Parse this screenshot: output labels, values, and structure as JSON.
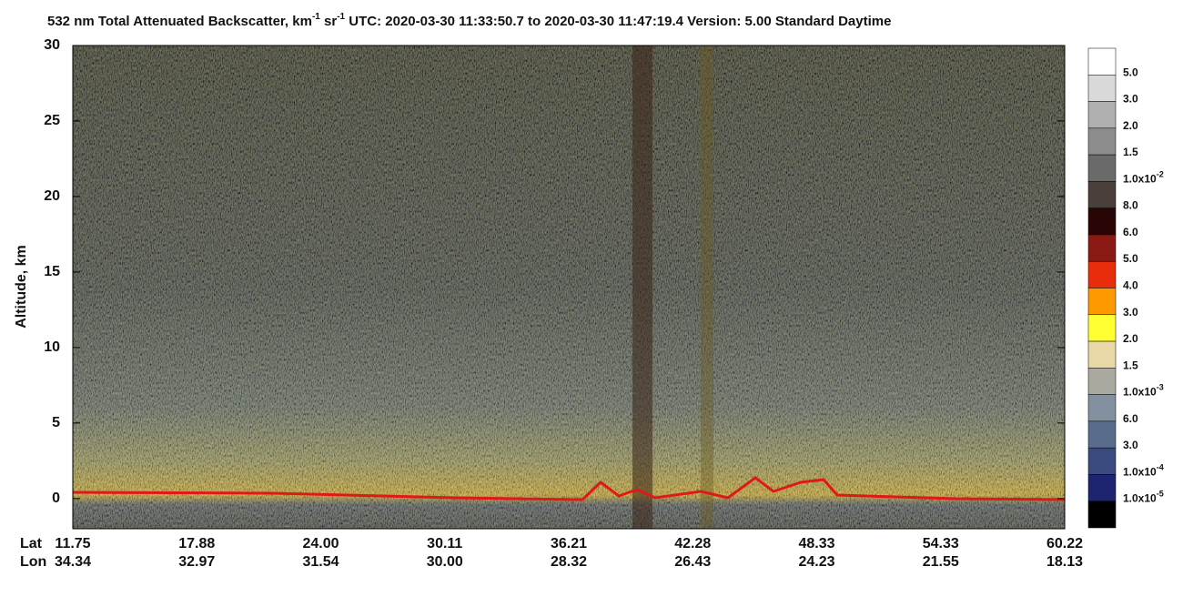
{
  "chart_data": {
    "type": "curtain",
    "title": [
      {
        "text": "532 nm Total Attenuated Backscatter, km"
      },
      {
        "text": "-1",
        "sup": true
      },
      {
        "text": " sr"
      },
      {
        "text": "-1",
        "sup": true
      },
      {
        "text": "    UTC:  2020-03-30 11:33:50.7  to  2020-03-30 11:47:19.4     Version: 5.00  Standard  Daytime"
      }
    ],
    "y_label": "Altitude, km",
    "ylim": [
      -2,
      30
    ],
    "yticks": [
      0,
      5,
      10,
      15,
      20,
      25,
      30
    ],
    "x_row_labels": [
      "Lat",
      "Lon"
    ],
    "lat": [
      "11.75",
      "17.88",
      "24.00",
      "30.11",
      "36.21",
      "42.28",
      "48.33",
      "54.33",
      "60.22"
    ],
    "lon": [
      "34.34",
      "32.97",
      "31.54",
      "30.00",
      "28.32",
      "26.43",
      "24.23",
      "21.55",
      "18.13"
    ],
    "colorbar": {
      "colors": [
        "#ffffff",
        "#d9d9d9",
        "#b0b0b0",
        "#8c8c8c",
        "#6a6a6a",
        "#4a3f3a",
        "#2a0505",
        "#8b1a14",
        "#e82c0c",
        "#ff9900",
        "#ffff33",
        "#e8d8a8",
        "#a9a99f",
        "#8390a0",
        "#5a6c8c",
        "#3a4a7e",
        "#1e2470",
        "#000000"
      ],
      "labels": [
        {
          "text": "5.0"
        },
        {
          "text": "3.0"
        },
        {
          "text": "2.0"
        },
        {
          "text": "1.5"
        },
        {
          "text": "1.0x10",
          "sup": "-2"
        },
        {
          "text": "8.0"
        },
        {
          "text": "6.0"
        },
        {
          "text": "5.0"
        },
        {
          "text": "4.0"
        },
        {
          "text": "3.0"
        },
        {
          "text": "2.0"
        },
        {
          "text": "1.5"
        },
        {
          "text": "1.0x10",
          "sup": "-3"
        },
        {
          "text": "6.0"
        },
        {
          "text": "3.0"
        },
        {
          "text": "1.0x10",
          "sup": "-4"
        },
        {
          "text": "1.0x10",
          "sup": "-5"
        }
      ]
    }
  }
}
